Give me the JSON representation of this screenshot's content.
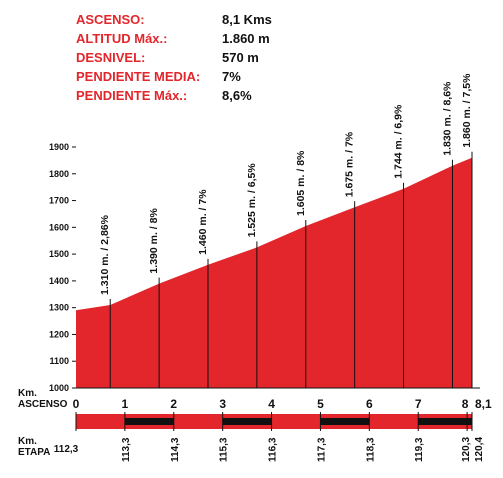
{
  "stats": [
    {
      "label": "ASCENSO:",
      "value": "8,1 Kms"
    },
    {
      "label": "ALTITUD Máx.:",
      "value": "1.860 m"
    },
    {
      "label": "DESNIVEL:",
      "value": "570 m"
    },
    {
      "label": "PENDIENTE MEDIA:",
      "value": "7%"
    },
    {
      "label": "PENDIENTE Máx.:",
      "value": "8,6%"
    }
  ],
  "colors": {
    "fill": "#e3262b",
    "fill_light": "#ef4a46",
    "text": "#111111",
    "accent": "#e3262b"
  },
  "chart_data": {
    "type": "area",
    "ylim": [
      1000,
      1900
    ],
    "xlim": [
      0,
      8.1
    ],
    "y_ticks": [
      "1000",
      "1100",
      "1200",
      "1300",
      "1400",
      "1500",
      "1600",
      "1700",
      "1800",
      "1900"
    ],
    "profile": [
      {
        "x": 0,
        "y": 1290
      },
      {
        "x": 0.7,
        "y": 1310
      },
      {
        "x": 1.7,
        "y": 1390
      },
      {
        "x": 2.7,
        "y": 1460
      },
      {
        "x": 3.7,
        "y": 1525
      },
      {
        "x": 4.7,
        "y": 1605
      },
      {
        "x": 5.7,
        "y": 1675
      },
      {
        "x": 6.7,
        "y": 1744
      },
      {
        "x": 7.7,
        "y": 1830
      },
      {
        "x": 8.1,
        "y": 1860
      }
    ],
    "annotations": [
      {
        "x": 0.7,
        "y": 1310,
        "label": "1.310 m. / 2,86%"
      },
      {
        "x": 1.7,
        "y": 1390,
        "label": "1.390 m. / 8%"
      },
      {
        "x": 2.7,
        "y": 1460,
        "label": "1.460 m. / 7%"
      },
      {
        "x": 3.7,
        "y": 1525,
        "label": "1.525 m. / 6,5%"
      },
      {
        "x": 4.7,
        "y": 1605,
        "label": "1.605 m. / 8%"
      },
      {
        "x": 5.7,
        "y": 1675,
        "label": "1.675 m. / 7%"
      },
      {
        "x": 6.7,
        "y": 1744,
        "label": "1.744 m. / 6,9%"
      },
      {
        "x": 7.7,
        "y": 1830,
        "label": "1.830 m. / 8,6%"
      },
      {
        "x": 8.1,
        "y": 1860,
        "label": "1.860 m. / 7,5%"
      }
    ],
    "km_ascenso_label": "Km.\nASCENSO",
    "km_ascenso": [
      {
        "x": 0,
        "label": "0"
      },
      {
        "x": 1,
        "label": "1"
      },
      {
        "x": 2,
        "label": "2"
      },
      {
        "x": 3,
        "label": "3"
      },
      {
        "x": 4,
        "label": "4"
      },
      {
        "x": 5,
        "label": "5"
      },
      {
        "x": 6,
        "label": "6"
      },
      {
        "x": 7,
        "label": "7"
      },
      {
        "x": 8,
        "label": "8"
      },
      {
        "x": 8.1,
        "label": "8,1"
      }
    ],
    "km_etapa_label": "Km.\nETAPA",
    "km_etapa": [
      {
        "x": 0,
        "label": "112,3"
      },
      {
        "x": 1,
        "label": "113,3"
      },
      {
        "x": 2,
        "label": "114,3"
      },
      {
        "x": 3,
        "label": "115,3"
      },
      {
        "x": 4,
        "label": "116,3"
      },
      {
        "x": 5,
        "label": "117,3"
      },
      {
        "x": 6,
        "label": "118,3"
      },
      {
        "x": 7,
        "label": "119,3"
      },
      {
        "x": 8,
        "label": "120,3"
      },
      {
        "x": 8.1,
        "label": "120,4"
      }
    ]
  }
}
